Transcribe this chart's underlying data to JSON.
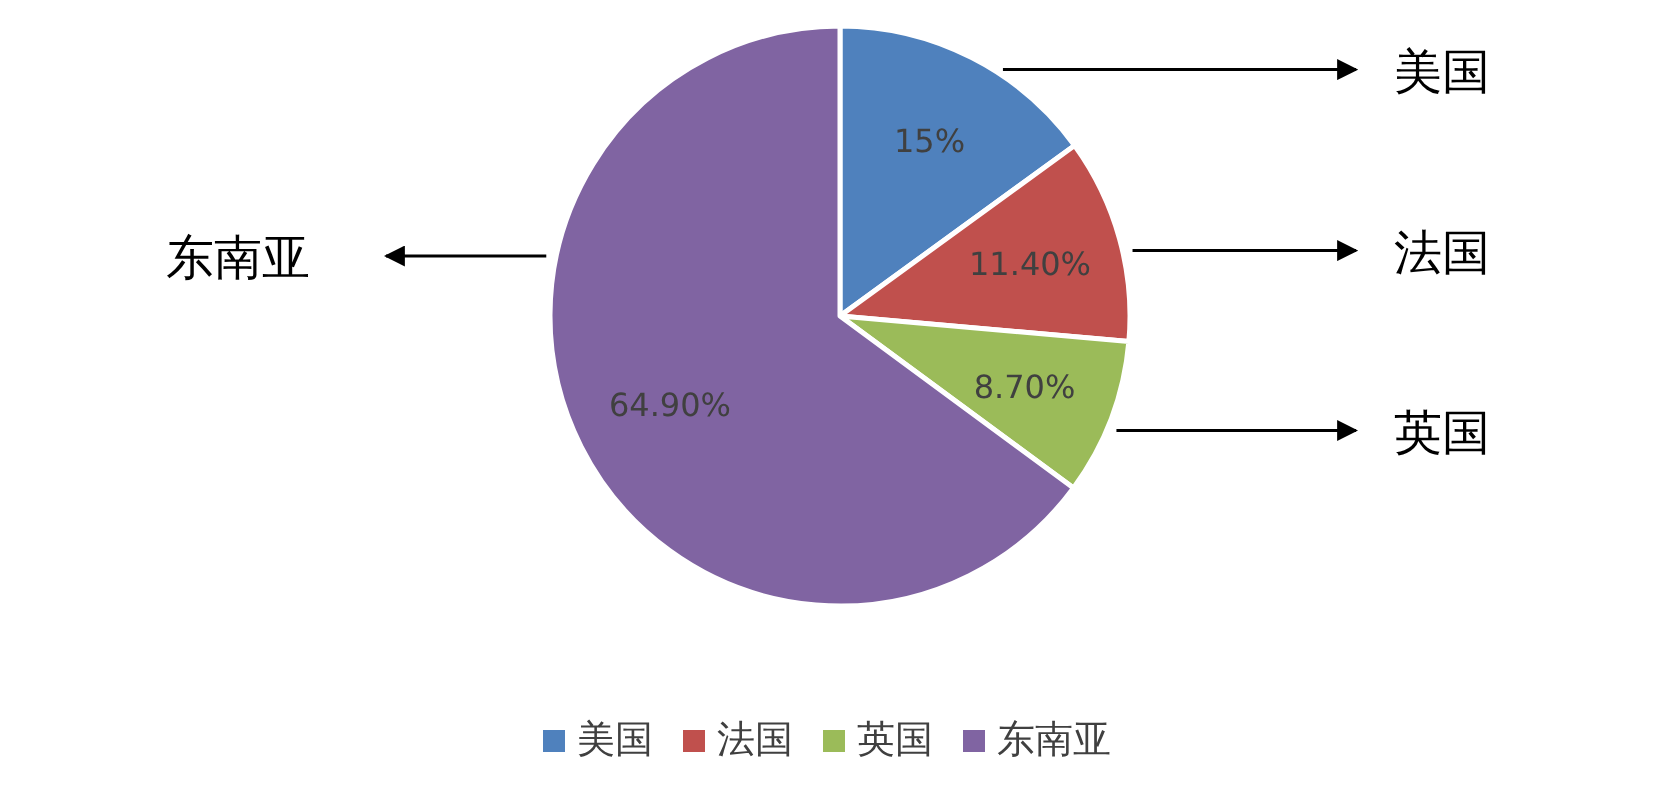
{
  "chart_data": {
    "type": "pie",
    "categories": [
      "美国",
      "法国",
      "英国",
      "东南亚"
    ],
    "values": [
      15,
      11.4,
      8.7,
      64.9
    ],
    "value_labels": [
      "15%",
      "11.40%",
      "8.70%",
      "64.90%"
    ],
    "colors": [
      "#4f81bd",
      "#c0504d",
      "#9bbb59",
      "#8064a2"
    ],
    "legend": "bottom"
  }
}
